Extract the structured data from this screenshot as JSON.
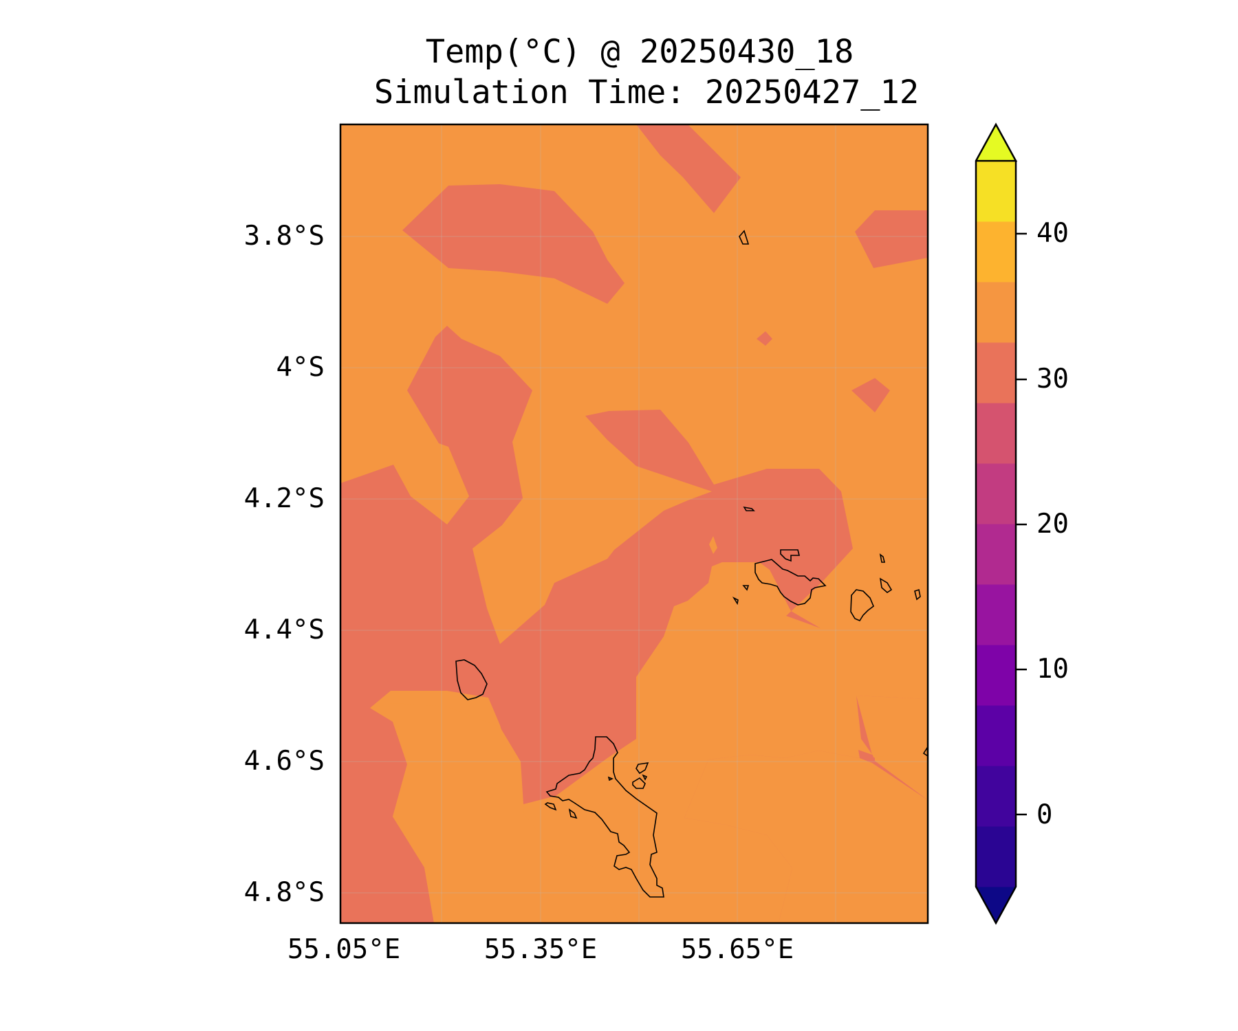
{
  "title": {
    "line1": "Temp(°C) @ 20250430_18",
    "line2": "Simulation Time: 20250427_12"
  },
  "map": {
    "lat_labels": [
      "3.8°S",
      "4°S",
      "4.2°S",
      "4.4°S",
      "4.6°S",
      "4.8°S"
    ],
    "lon_labels": [
      "55.05°E",
      "55.35°E",
      "55.65°E"
    ],
    "field_colors": {
      "warm": "#f59641",
      "cool": "#e9735a"
    },
    "coastline_color": "#000000"
  },
  "colorbar": {
    "ticks": [
      "0",
      "10",
      "20",
      "30",
      "40"
    ],
    "extend": "both",
    "colors": [
      "#0d0887",
      "#2a0593",
      "#41049d",
      "#5c01a6",
      "#7e03a8",
      "#9814a0",
      "#b12a90",
      "#c23c81",
      "#d5536f",
      "#e9735a",
      "#f59641",
      "#fdb32f",
      "#f6e025",
      "#e5fa23"
    ]
  }
}
